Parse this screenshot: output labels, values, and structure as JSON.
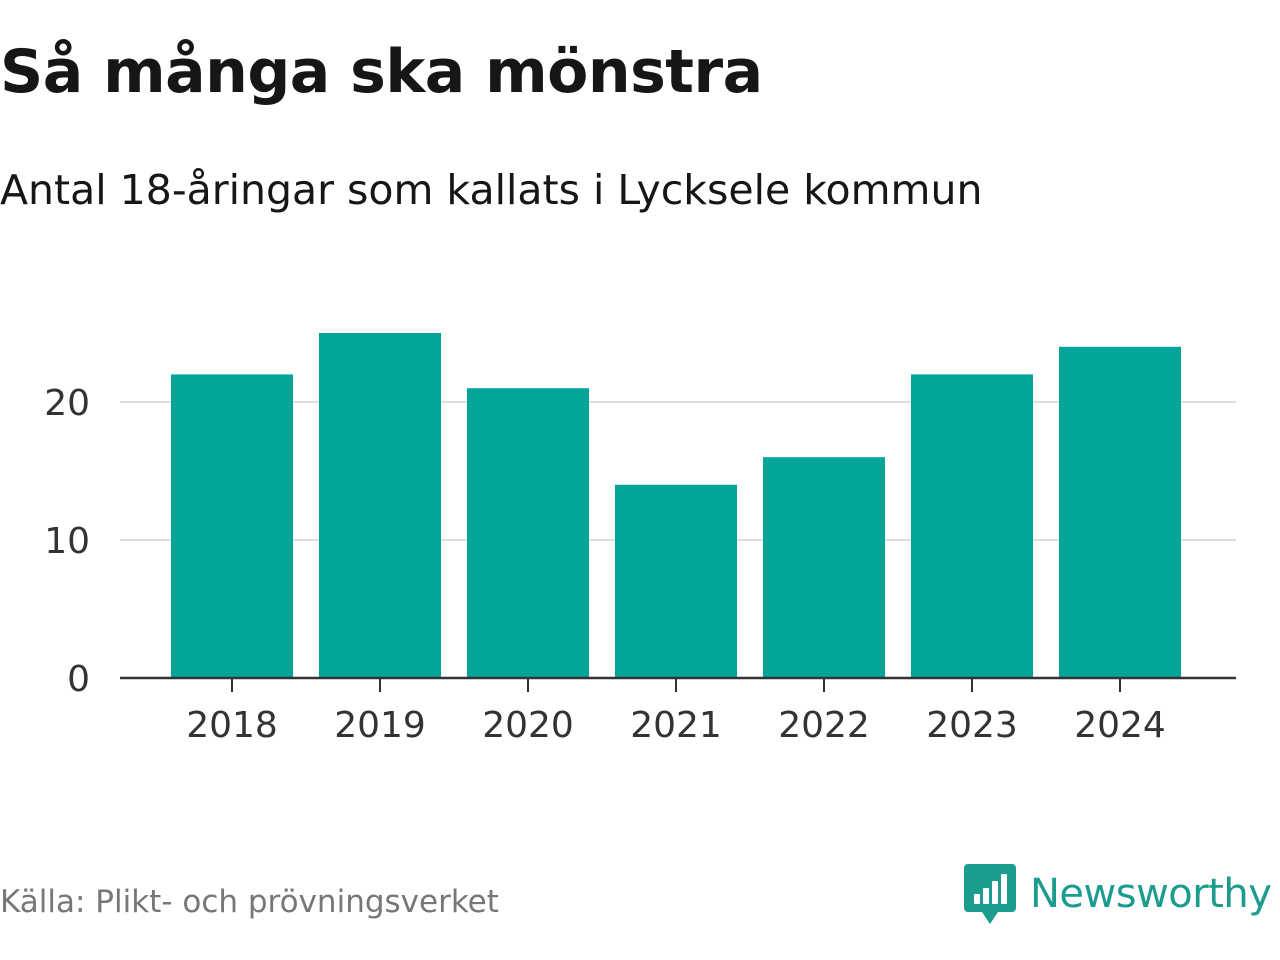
{
  "chart_data": {
    "type": "bar",
    "title": "Så många ska mönstra",
    "subtitle": "Antal 18-åringar som kallats i Lycksele kommun",
    "categories": [
      "2018",
      "2019",
      "2020",
      "2021",
      "2022",
      "2023",
      "2024"
    ],
    "values": [
      22,
      25,
      21,
      14,
      16,
      22,
      24
    ],
    "xlabel": "",
    "ylabel": "",
    "ylim": [
      0,
      25
    ],
    "yticks": [
      0,
      10,
      20
    ],
    "grid": true,
    "bar_color": "#00a499"
  },
  "footer": {
    "source": "Källa: Plikt- och prövningsverket",
    "brand": "Newsworthy",
    "brand_color": "#1c9c8e"
  }
}
